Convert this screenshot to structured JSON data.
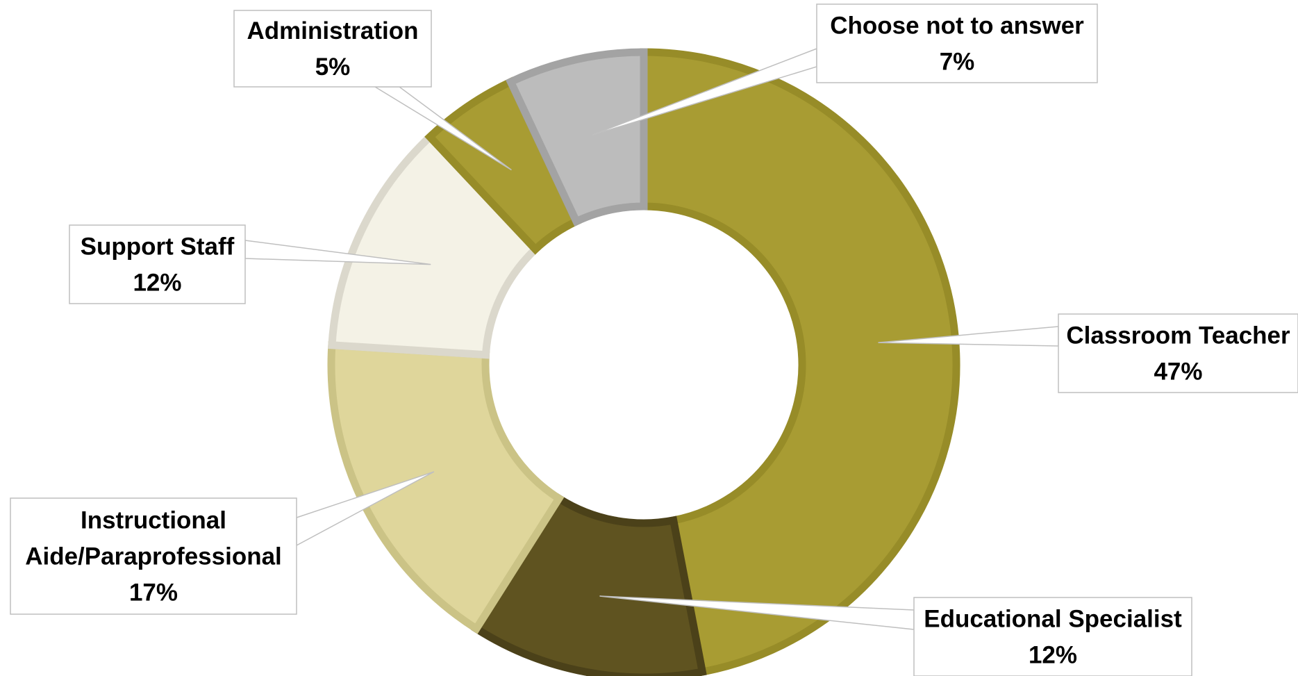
{
  "chart_data": {
    "type": "pie",
    "variant": "donut",
    "title": "",
    "unit": "%",
    "slices": [
      {
        "label": "Classroom Teacher",
        "label_lines": [
          "Classroom Teacher"
        ],
        "value": 47,
        "display": "47%",
        "color": "#a89c33",
        "edge": "#978c28"
      },
      {
        "label": "Educational Specialist",
        "label_lines": [
          "Educational Specialist"
        ],
        "value": 12,
        "display": "12%",
        "color": "#5f5320",
        "edge": "#4b4119"
      },
      {
        "label": "Instructional Aide/Paraprofessional",
        "label_lines": [
          "Instructional",
          "Aide/Paraprofessional"
        ],
        "value": 17,
        "display": "17%",
        "color": "#dfd69b",
        "edge": "#cbc386"
      },
      {
        "label": "Support Staff",
        "label_lines": [
          "Support Staff"
        ],
        "value": 12,
        "display": "12%",
        "color": "#f4f2e6",
        "edge": "#dbd8cc"
      },
      {
        "label": "Administration",
        "label_lines": [
          "Administration"
        ],
        "value": 5,
        "display": "5%",
        "color": "#a89c33",
        "edge": "#978c28"
      },
      {
        "label": "Choose not to answer",
        "label_lines": [
          "Choose not to answer"
        ],
        "value": 7,
        "display": "7%",
        "color": "#bcbcbc",
        "edge": "#a3a3a3"
      }
    ],
    "start_angle_deg": 0,
    "direction": "clockwise",
    "legend": "none",
    "data_labels": "callouts"
  }
}
